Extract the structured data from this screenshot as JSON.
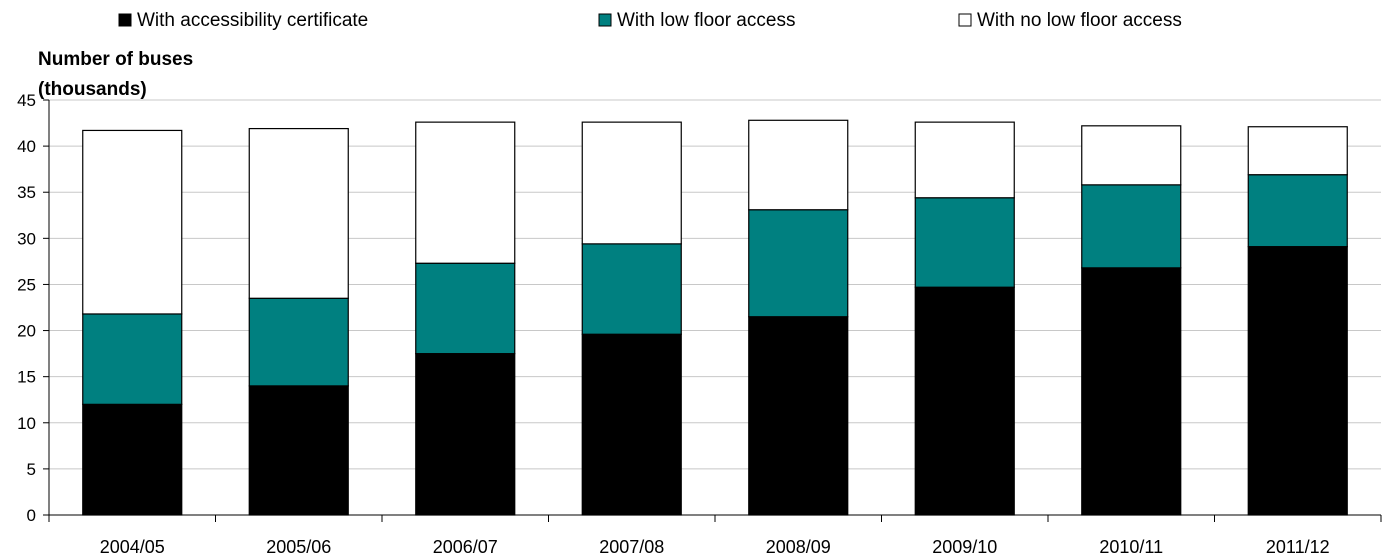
{
  "chart_data": {
    "type": "bar",
    "stacked": true,
    "title": "",
    "ylabel_lines": [
      "Number of buses",
      "(thousands)"
    ],
    "xlabel": "",
    "ylim": [
      0,
      45
    ],
    "yticks": [
      0,
      5,
      10,
      15,
      20,
      25,
      30,
      35,
      40,
      45
    ],
    "ytick_labels": [
      "0",
      "5",
      "10",
      "15",
      "20",
      "25",
      "30",
      "35",
      "40",
      "45"
    ],
    "grid": true,
    "legend_position": "top",
    "categories": [
      "2004/05",
      "2005/06",
      "2006/07",
      "2007/08",
      "2008/09",
      "2009/10",
      "2010/11",
      "2011/12"
    ],
    "series": [
      {
        "name": "With accessibility certificate",
        "color": "#000000",
        "values": [
          12.0,
          14.0,
          17.5,
          19.6,
          21.5,
          24.7,
          26.8,
          29.1
        ]
      },
      {
        "name": "With low floor access",
        "color": "#008080",
        "values": [
          9.8,
          9.5,
          9.8,
          9.8,
          11.6,
          9.7,
          9.0,
          7.8
        ]
      },
      {
        "name": "With no low floor access",
        "color": "#ffffff",
        "values": [
          19.9,
          18.4,
          15.3,
          13.2,
          9.7,
          8.2,
          6.4,
          5.2
        ]
      }
    ]
  }
}
